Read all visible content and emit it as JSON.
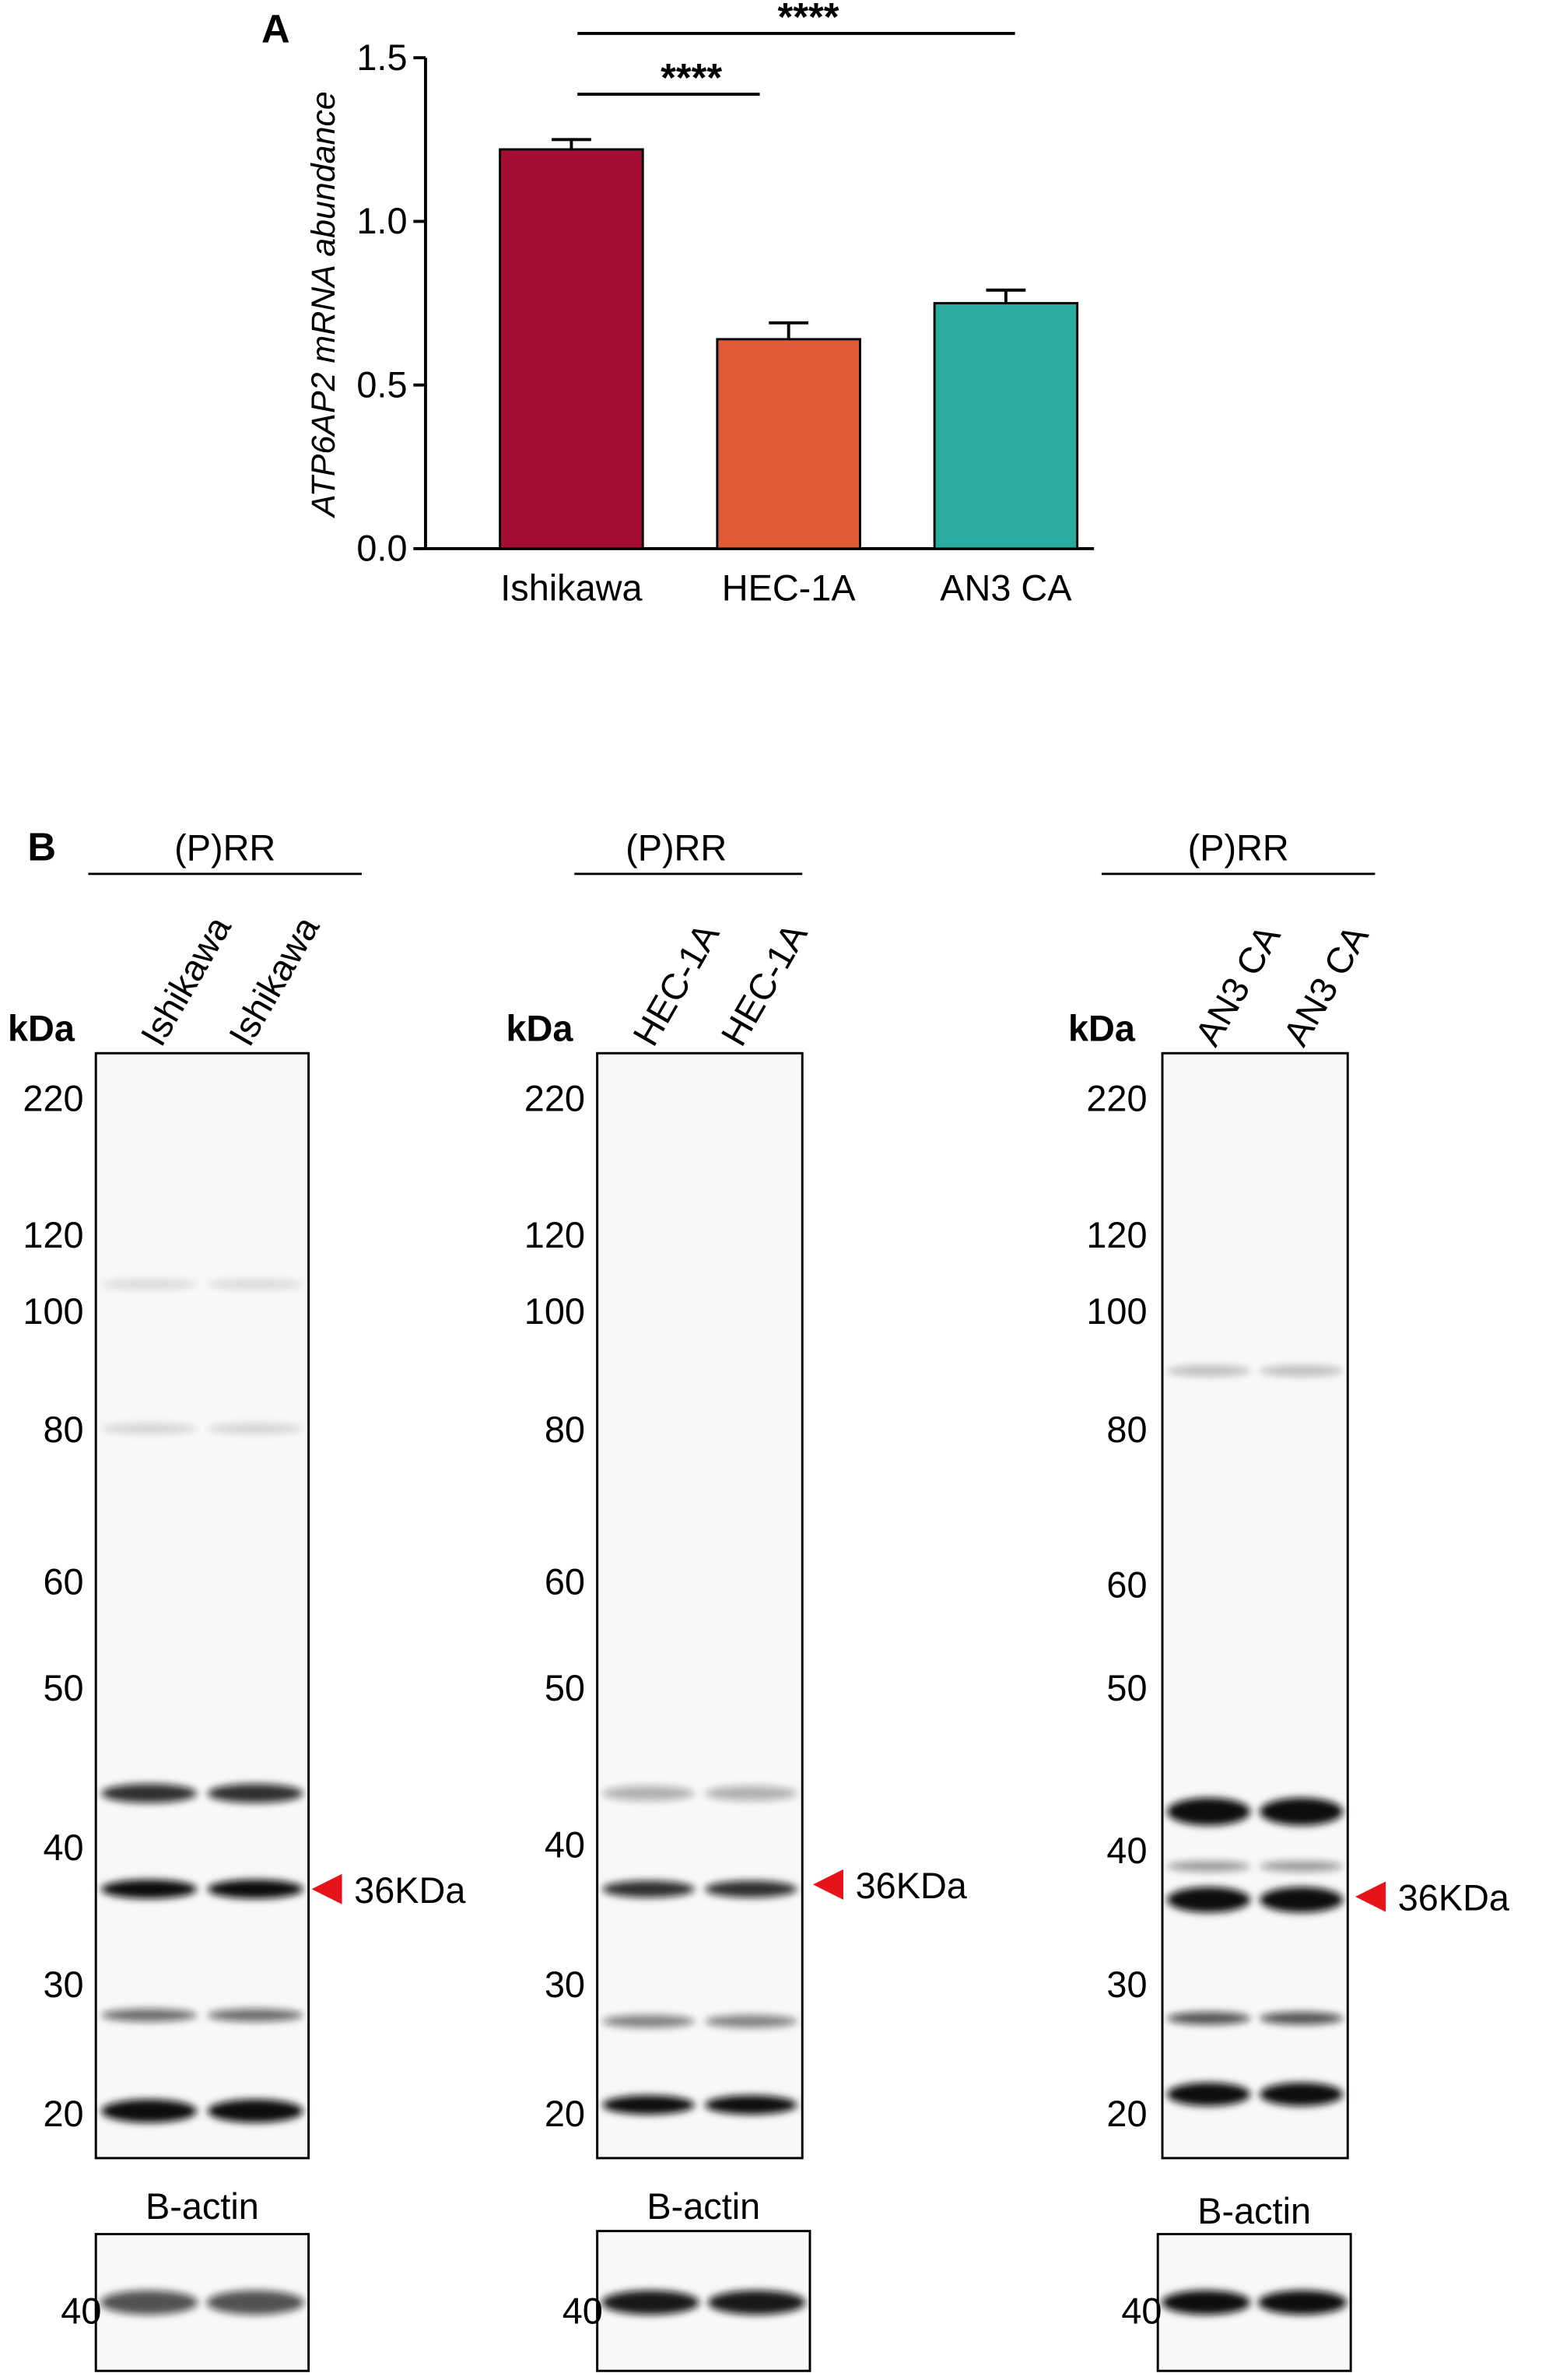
{
  "chart_data": {
    "type": "bar",
    "panel_label": "A",
    "ylabel": "ATP6AP2 mRNA abundance",
    "categories": [
      "Ishikawa",
      "HEC-1A",
      "AN3 CA"
    ],
    "values": [
      1.22,
      0.64,
      0.75
    ],
    "errors": [
      0.03,
      0.05,
      0.04
    ],
    "colors": [
      "#a50e32",
      "#e05a36",
      "#2aab9f"
    ],
    "ylim": [
      0,
      1.5
    ],
    "yticks": [
      {
        "value": 0,
        "label": "0.0"
      },
      0.5,
      {
        "value": 1,
        "label": "1.0"
      },
      1.5
    ],
    "annotations": [
      "****",
      "****"
    ]
  },
  "panel_b": {
    "label": "B",
    "blots": [
      {
        "header": "(P)RR",
        "lanes": [
          "Ishikawa",
          "Ishikawa"
        ],
        "unit_label": "kDa",
        "markers": [
          220,
          120,
          100,
          80,
          60,
          50,
          40,
          30,
          20
        ],
        "arrow_label": "36KDa",
        "loading_control": {
          "label": "B-actin",
          "marker": 40
        }
      },
      {
        "header": "(P)RR",
        "lanes": [
          "HEC-1A",
          "HEC-1A"
        ],
        "unit_label": "kDa",
        "markers": [
          220,
          120,
          100,
          80,
          60,
          50,
          40,
          30,
          20
        ],
        "arrow_label": "36KDa",
        "loading_control": {
          "label": "B-actin",
          "marker": 40
        }
      },
      {
        "header": "(P)RR",
        "lanes": [
          "AN3 CA",
          "AN3 CA"
        ],
        "unit_label": "kDa",
        "markers": [
          220,
          120,
          100,
          80,
          60,
          50,
          40,
          30,
          20
        ],
        "arrow_label": "36KDa",
        "loading_control": {
          "label": "B-actin",
          "marker": 40
        }
      }
    ]
  }
}
